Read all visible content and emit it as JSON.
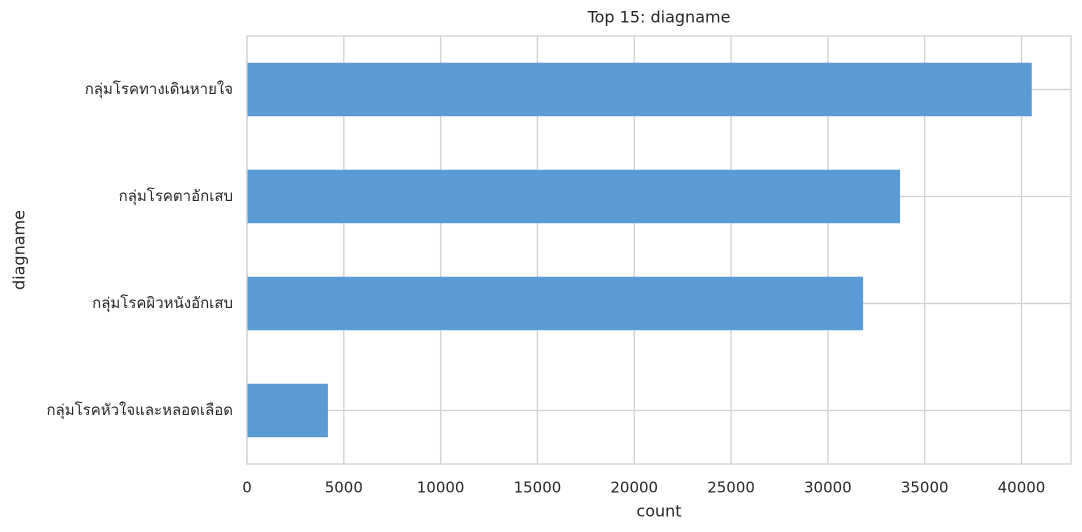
{
  "chart_data": {
    "type": "barh",
    "title": "Top 15: diagname",
    "x_label": "count",
    "y_label": "diagname",
    "categories": [
      "กลุ่มโรคทางเดินหายใจ",
      "กลุ่มโรคตาอักเสบ",
      "กลุ่มโรคผิวหนังอักเสบ",
      "กลุ่มโรคหัวใจและหลอดเลือด"
    ],
    "values": [
      40530,
      33730,
      31820,
      4180
    ],
    "color": "#5b9bd5",
    "xlim": [
      0,
      42557
    ],
    "xticks": [
      0,
      5000,
      10000,
      15000,
      20000,
      25000,
      30000,
      35000,
      40000
    ],
    "grid": true
  }
}
